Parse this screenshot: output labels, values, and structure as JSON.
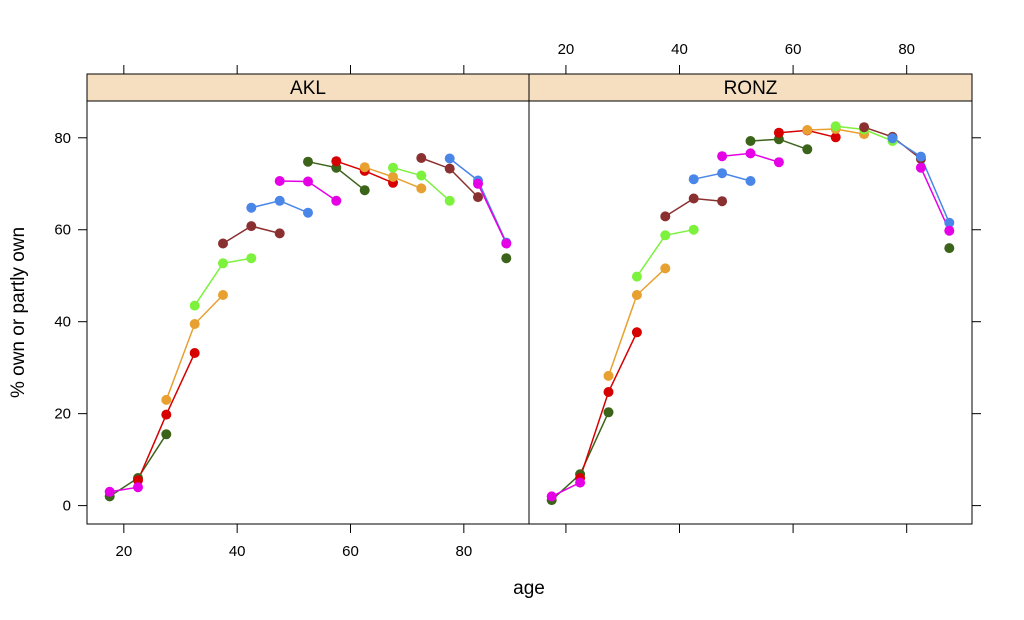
{
  "chart_data": {
    "type": "line",
    "xlabel": "age",
    "ylabel": "% own or partly own",
    "xlim": [
      13.5,
      91.5
    ],
    "ylim": [
      -4,
      88
    ],
    "xticks_bottom": [
      20,
      40,
      60,
      80
    ],
    "xticks_top": [
      20,
      40,
      60,
      80
    ],
    "yticks": [
      0,
      20,
      40,
      60,
      80
    ],
    "strip_color": "#f6dfc1",
    "panels": [
      {
        "name": "AKL",
        "series": [
          {
            "color": "#3b6319",
            "x": [
              17.5,
              22.5,
              27.5
            ],
            "y": [
              2,
              6,
              15.5
            ]
          },
          {
            "color": "#d60000",
            "x": [
              22.5,
              27.5,
              32.5
            ],
            "y": [
              5.5,
              19.8,
              33.2
            ]
          },
          {
            "color": "#e8a030",
            "x": [
              27.5,
              32.5,
              37.5
            ],
            "y": [
              23,
              39.5,
              45.8
            ]
          },
          {
            "color": "#7cf23c",
            "x": [
              32.5,
              37.5,
              42.5
            ],
            "y": [
              43.5,
              52.7,
              53.8
            ]
          },
          {
            "color": "#8b3030",
            "x": [
              37.5,
              42.5,
              47.5
            ],
            "y": [
              57,
              60.8,
              59.2
            ]
          },
          {
            "color": "#4a86e8",
            "x": [
              42.5,
              47.5,
              52.5
            ],
            "y": [
              64.8,
              66.3,
              63.7
            ]
          },
          {
            "color": "#e600e6",
            "x": [
              47.5,
              52.5,
              57.5
            ],
            "y": [
              70.6,
              70.5,
              66.3
            ]
          },
          {
            "color": "#3b6319",
            "x": [
              52.5,
              57.5,
              62.5
            ],
            "y": [
              74.8,
              73.5,
              68.6
            ]
          },
          {
            "color": "#d60000",
            "x": [
              57.5,
              62.5,
              67.5
            ],
            "y": [
              74.9,
              72.8,
              70.2
            ]
          },
          {
            "color": "#e8a030",
            "x": [
              62.5,
              67.5,
              72.5
            ],
            "y": [
              73.6,
              71.5,
              69
            ]
          },
          {
            "color": "#7cf23c",
            "x": [
              67.5,
              72.5,
              77.5
            ],
            "y": [
              73.5,
              71.8,
              66.3
            ]
          },
          {
            "color": "#8b3030",
            "x": [
              72.5,
              77.5,
              82.5
            ],
            "y": [
              75.6,
              73.3,
              67.1
            ]
          },
          {
            "color": "#4a86e8",
            "x": [
              77.5,
              82.5,
              87.5
            ],
            "y": [
              75.5,
              70.7,
              57.2
            ]
          },
          {
            "color": "#e600e6",
            "x": [
              17.5,
              22.5
            ],
            "y": [
              3,
              4
            ]
          },
          {
            "color": "#e600e6",
            "x": [
              82.5,
              87.5
            ],
            "y": [
              70,
              57
            ]
          },
          {
            "color": "#3b6319",
            "x": [
              87.5
            ],
            "y": [
              53.8
            ]
          }
        ]
      },
      {
        "name": "RONZ",
        "series": [
          {
            "color": "#3b6319",
            "x": [
              17.5,
              22.5,
              27.5
            ],
            "y": [
              1.2,
              6.8,
              20.3
            ]
          },
          {
            "color": "#d60000",
            "x": [
              22.5,
              27.5,
              32.5
            ],
            "y": [
              6,
              24.7,
              37.7
            ]
          },
          {
            "color": "#e8a030",
            "x": [
              27.5,
              32.5,
              37.5
            ],
            "y": [
              28.2,
              45.8,
              51.6
            ]
          },
          {
            "color": "#7cf23c",
            "x": [
              32.5,
              37.5,
              42.5
            ],
            "y": [
              49.8,
              58.8,
              60
            ]
          },
          {
            "color": "#8b3030",
            "x": [
              37.5,
              42.5,
              47.5
            ],
            "y": [
              62.9,
              66.8,
              66.2
            ]
          },
          {
            "color": "#4a86e8",
            "x": [
              42.5,
              47.5,
              52.5
            ],
            "y": [
              71,
              72.3,
              70.6
            ]
          },
          {
            "color": "#e600e6",
            "x": [
              47.5,
              52.5,
              57.5
            ],
            "y": [
              76,
              76.6,
              74.7
            ]
          },
          {
            "color": "#3b6319",
            "x": [
              52.5,
              57.5,
              62.5
            ],
            "y": [
              79.3,
              79.7,
              77.5
            ]
          },
          {
            "color": "#d60000",
            "x": [
              57.5,
              62.5,
              67.5
            ],
            "y": [
              81.1,
              81.6,
              80.1
            ]
          },
          {
            "color": "#e8a030",
            "x": [
              62.5,
              67.5,
              72.5
            ],
            "y": [
              81.7,
              81.9,
              80.8
            ]
          },
          {
            "color": "#7cf23c",
            "x": [
              67.5,
              72.5,
              77.5
            ],
            "y": [
              82.5,
              81.8,
              79.3
            ]
          },
          {
            "color": "#8b3030",
            "x": [
              72.5,
              77.5,
              82.5
            ],
            "y": [
              82.3,
              80.2,
              75.4
            ]
          },
          {
            "color": "#4a86e8",
            "x": [
              77.5,
              82.5,
              87.5
            ],
            "y": [
              79.9,
              75.9,
              61.5
            ]
          },
          {
            "color": "#e600e6",
            "x": [
              17.5,
              22.5
            ],
            "y": [
              2,
              5
            ]
          },
          {
            "color": "#e600e6",
            "x": [
              82.5,
              87.5
            ],
            "y": [
              73.5,
              59.8
            ]
          },
          {
            "color": "#3b6319",
            "x": [
              87.5
            ],
            "y": [
              56
            ]
          }
        ]
      }
    ]
  }
}
